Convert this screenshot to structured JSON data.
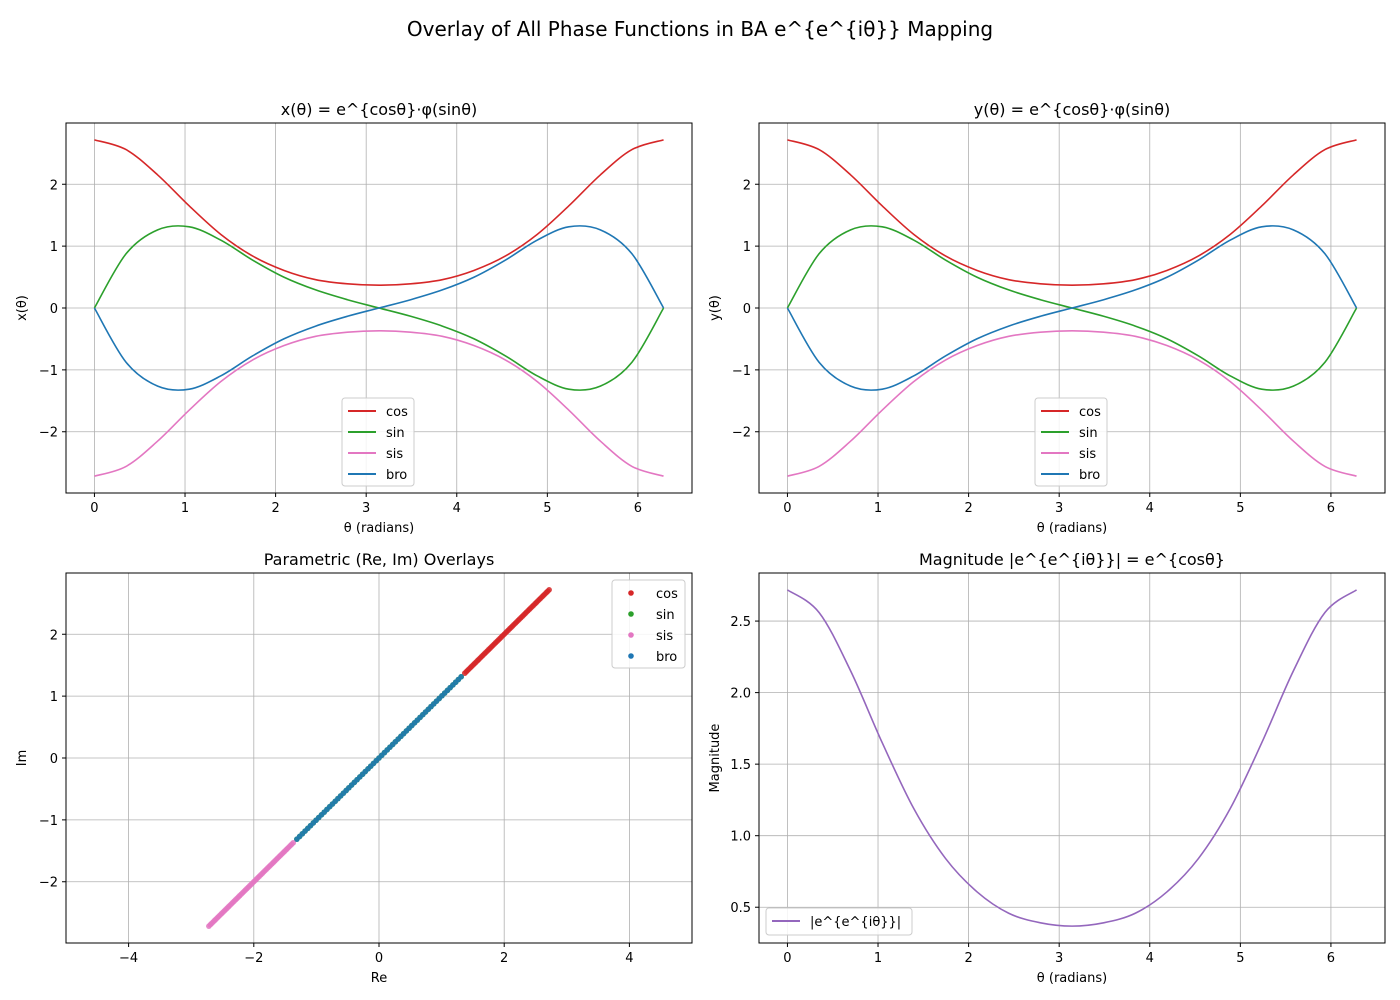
{
  "figure": {
    "suptitle": "Overlay of All Phase Functions in BA e^{e^{iθ}} Mapping"
  },
  "colors": {
    "cos": "#d62728",
    "sin": "#2ca02c",
    "sis": "#e377c2",
    "bro": "#1f77b4",
    "magnitude": "#9467bd",
    "grid": "#b0b0b0",
    "axes": "#000000"
  },
  "chart_data": [
    {
      "id": "x_plot",
      "type": "line",
      "title": "x(θ) = e^{cosθ}·φ(sinθ)",
      "xlabel": "θ (radians)",
      "ylabel": "x(θ)",
      "xlim": [
        -0.314,
        6.597
      ],
      "ylim": [
        -2.99,
        2.99
      ],
      "xticks": [
        0,
        1,
        2,
        3,
        4,
        5,
        6
      ],
      "xtick_labels": [
        "0",
        "1",
        "2",
        "3",
        "4",
        "5",
        "6"
      ],
      "yticks": [
        -2,
        -1,
        0,
        1,
        2
      ],
      "ytick_labels": [
        "−2",
        "−1",
        "0",
        "1",
        "2"
      ],
      "grid": true,
      "legend_position": "lower-center",
      "x": [
        0,
        0.349,
        0.698,
        1.047,
        1.396,
        1.745,
        2.094,
        2.443,
        2.793,
        3.142,
        3.491,
        3.84,
        4.189,
        4.538,
        4.887,
        5.236,
        5.585,
        5.934,
        6.283
      ],
      "series": [
        {
          "name": "cos",
          "color_key": "cos",
          "values": [
            2.718,
            2.56,
            2.151,
            1.649,
            1.188,
            0.841,
            0.607,
            0.458,
            0.391,
            0.368,
            0.391,
            0.458,
            0.607,
            0.841,
            1.188,
            1.649,
            2.151,
            2.56,
            2.718
          ]
        },
        {
          "name": "sin",
          "color_key": "sin",
          "values": [
            0,
            0.876,
            1.263,
            1.312,
            1.096,
            0.775,
            0.497,
            0.292,
            0.134,
            0,
            -0.134,
            -0.292,
            -0.497,
            -0.775,
            -1.096,
            -1.312,
            -1.263,
            -0.876,
            0
          ]
        },
        {
          "name": "sis",
          "color_key": "sis",
          "values": [
            -2.718,
            -2.56,
            -2.151,
            -1.649,
            -1.188,
            -0.841,
            -0.607,
            -0.458,
            -0.391,
            -0.368,
            -0.391,
            -0.458,
            -0.607,
            -0.841,
            -1.188,
            -1.649,
            -2.151,
            -2.56,
            -2.718
          ]
        },
        {
          "name": "bro",
          "color_key": "bro",
          "values": [
            0,
            -0.876,
            -1.263,
            -1.312,
            -1.096,
            -0.775,
            -0.497,
            -0.292,
            -0.134,
            0,
            0.134,
            0.292,
            0.497,
            0.775,
            1.096,
            1.312,
            1.263,
            0.876,
            0
          ]
        }
      ]
    },
    {
      "id": "y_plot",
      "type": "line",
      "title": "y(θ) = e^{cosθ}·φ(sinθ)",
      "xlabel": "θ (radians)",
      "ylabel": "y(θ)",
      "xlim": [
        -0.314,
        6.597
      ],
      "ylim": [
        -2.99,
        2.99
      ],
      "xticks": [
        0,
        1,
        2,
        3,
        4,
        5,
        6
      ],
      "xtick_labels": [
        "0",
        "1",
        "2",
        "3",
        "4",
        "5",
        "6"
      ],
      "yticks": [
        -2,
        -1,
        0,
        1,
        2
      ],
      "ytick_labels": [
        "−2",
        "−1",
        "0",
        "1",
        "2"
      ],
      "grid": true,
      "legend_position": "lower-center",
      "x": [
        0,
        0.349,
        0.698,
        1.047,
        1.396,
        1.745,
        2.094,
        2.443,
        2.793,
        3.142,
        3.491,
        3.84,
        4.189,
        4.538,
        4.887,
        5.236,
        5.585,
        5.934,
        6.283
      ],
      "series": [
        {
          "name": "cos",
          "color_key": "cos",
          "values": [
            2.718,
            2.56,
            2.151,
            1.649,
            1.188,
            0.841,
            0.607,
            0.458,
            0.391,
            0.368,
            0.391,
            0.458,
            0.607,
            0.841,
            1.188,
            1.649,
            2.151,
            2.56,
            2.718
          ]
        },
        {
          "name": "sin",
          "color_key": "sin",
          "values": [
            0,
            0.876,
            1.263,
            1.312,
            1.096,
            0.775,
            0.497,
            0.292,
            0.134,
            0,
            -0.134,
            -0.292,
            -0.497,
            -0.775,
            -1.096,
            -1.312,
            -1.263,
            -0.876,
            0
          ]
        },
        {
          "name": "sis",
          "color_key": "sis",
          "values": [
            -2.718,
            -2.56,
            -2.151,
            -1.649,
            -1.188,
            -0.841,
            -0.607,
            -0.458,
            -0.391,
            -0.368,
            -0.391,
            -0.458,
            -0.607,
            -0.841,
            -1.188,
            -1.649,
            -2.151,
            -2.56,
            -2.718
          ]
        },
        {
          "name": "bro",
          "color_key": "bro",
          "values": [
            0,
            -0.876,
            -1.263,
            -1.312,
            -1.096,
            -0.775,
            -0.497,
            -0.292,
            -0.134,
            0,
            0.134,
            0.292,
            0.497,
            0.775,
            1.096,
            1.312,
            1.263,
            0.876,
            0
          ]
        }
      ]
    },
    {
      "id": "parametric_plot",
      "type": "scatter",
      "title": "Parametric (Re, Im) Overlays",
      "xlabel": "Re",
      "ylabel": "Im",
      "xlim": [
        -5.0,
        5.0
      ],
      "ylim": [
        -2.99,
        2.99
      ],
      "xticks": [
        -4,
        -2,
        0,
        2,
        4
      ],
      "xtick_labels": [
        "−4",
        "−2",
        "0",
        "2",
        "4"
      ],
      "yticks": [
        -2,
        -1,
        0,
        1,
        2
      ],
      "ytick_labels": [
        "−2",
        "−1",
        "0",
        "1",
        "2"
      ],
      "grid": true,
      "legend_position": "top-right",
      "series": [
        {
          "name": "cos",
          "color_key": "cos",
          "range": [
            1.37,
            2.718
          ]
        },
        {
          "name": "sin",
          "color_key": "sin",
          "range": [
            -1.312,
            1.312
          ]
        },
        {
          "name": "sis",
          "color_key": "sis",
          "range": [
            -2.718,
            -1.37
          ]
        },
        {
          "name": "bro",
          "color_key": "bro",
          "range": [
            -1.312,
            1.312
          ]
        }
      ]
    },
    {
      "id": "magnitude_plot",
      "type": "line",
      "title": "Magnitude |e^{e^{iθ}}| = e^{cosθ}",
      "xlabel": "θ (radians)",
      "ylabel": "Magnitude",
      "xlim": [
        -0.314,
        6.597
      ],
      "ylim": [
        0.25,
        2.836
      ],
      "xticks": [
        0,
        1,
        2,
        3,
        4,
        5,
        6
      ],
      "xtick_labels": [
        "0",
        "1",
        "2",
        "3",
        "4",
        "5",
        "6"
      ],
      "yticks": [
        0.5,
        1.0,
        1.5,
        2.0,
        2.5
      ],
      "ytick_labels": [
        "0.5",
        "1.0",
        "1.5",
        "2.0",
        "2.5"
      ],
      "grid": true,
      "legend_position": "lower-left",
      "x": [
        0,
        0.349,
        0.698,
        1.047,
        1.396,
        1.745,
        2.094,
        2.443,
        2.793,
        3.142,
        3.491,
        3.84,
        4.189,
        4.538,
        4.887,
        5.236,
        5.585,
        5.934,
        6.283
      ],
      "series": [
        {
          "name": "|e^{e^{iθ}}|",
          "color_key": "magnitude",
          "values": [
            2.718,
            2.56,
            2.151,
            1.649,
            1.188,
            0.841,
            0.607,
            0.458,
            0.391,
            0.368,
            0.391,
            0.458,
            0.607,
            0.841,
            1.188,
            1.649,
            2.151,
            2.56,
            2.718
          ]
        }
      ]
    }
  ]
}
